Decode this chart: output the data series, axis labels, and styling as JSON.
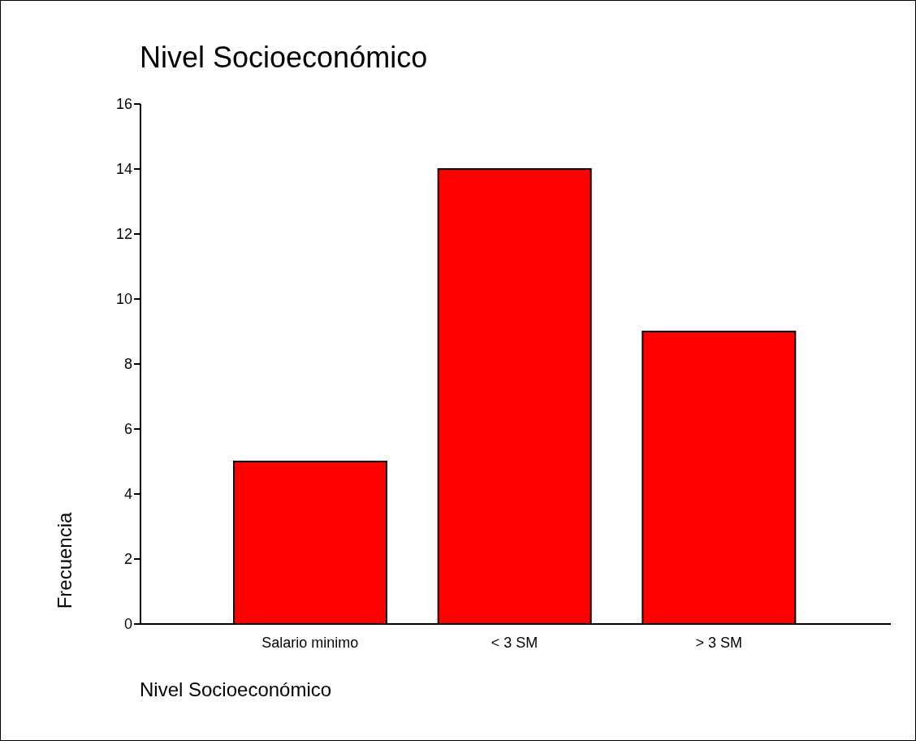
{
  "chart_data": {
    "type": "bar",
    "title": "Nivel Socioeconómico",
    "xlabel": "Nivel Socioeconómico",
    "ylabel": "Frecuencia",
    "categories": [
      "Salario minimo",
      "< 3 SM",
      "> 3 SM"
    ],
    "values": [
      5,
      14,
      9
    ],
    "color": "#ff0000",
    "ylim": [
      0,
      16
    ],
    "yticks": [
      0,
      2,
      4,
      6,
      8,
      10,
      12,
      14,
      16
    ],
    "grid": false
  }
}
